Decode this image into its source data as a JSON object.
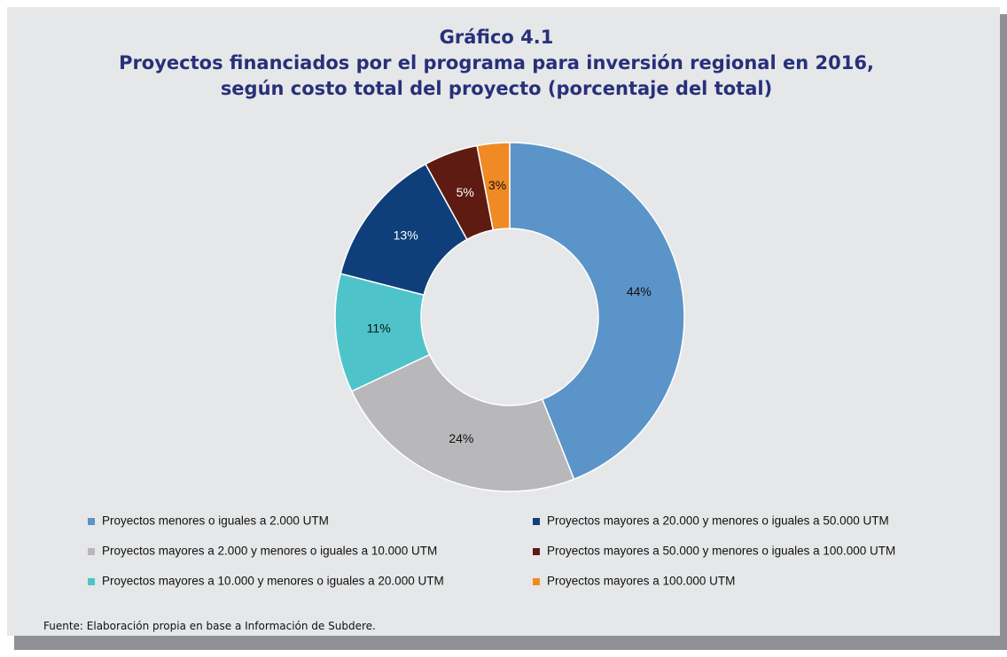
{
  "chart_data": {
    "type": "donut",
    "title": "Gráfico 4.1",
    "subtitle": "Proyectos financiados por el programa para inversión regional en 2016, según costo total del proyecto (porcentaje del total)",
    "categories": [
      "Proyectos menores o iguales a 2.000 UTM",
      "Proyectos mayores a 2.000 y menores o iguales a 10.000 UTM",
      "Proyectos mayores a 10.000 y menores o iguales a 20.000 UTM",
      "Proyectos mayores a 20.000 y menores o iguales a 50.000 UTM",
      "Proyectos mayores a 50.000 y menores o iguales a 100.000 UTM",
      "Proyectos mayores a 100.000 UTM"
    ],
    "values": [
      44,
      24,
      11,
      13,
      5,
      3
    ],
    "value_labels": [
      "44%",
      "24%",
      "11%",
      "13%",
      "5%",
      "3%"
    ],
    "colors": [
      "#5b94c8",
      "#b8b8ba",
      "#4ec4ca",
      "#0f3f7b",
      "#5d1b12",
      "#f08a25"
    ],
    "source": "Fuente: Elaboración propia en base a Información de Subdere."
  }
}
